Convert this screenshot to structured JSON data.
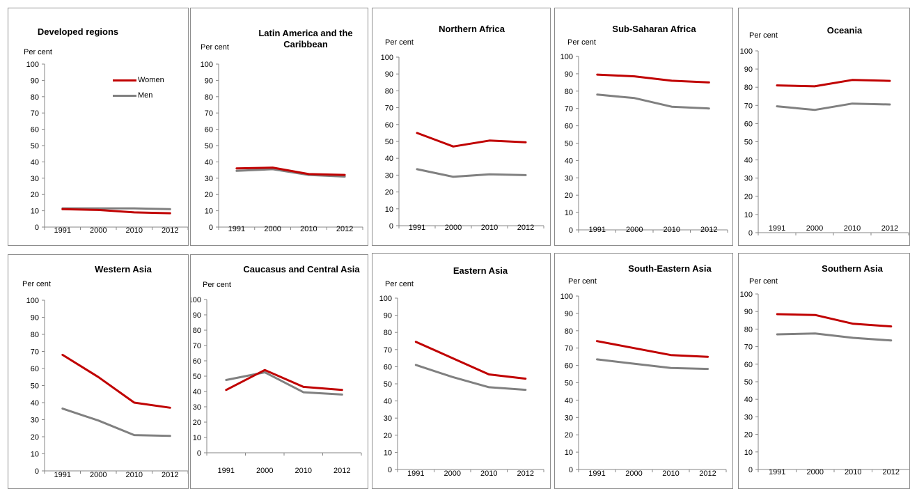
{
  "ylabel": "Per cent",
  "legend": {
    "women": "Women",
    "men": "Men"
  },
  "colors": {
    "women": "#c00000",
    "men": "#808080"
  },
  "chart_data": [
    {
      "type": "line",
      "title": "Developed regions",
      "x": [
        "1991",
        "2000",
        "2010",
        "2012"
      ],
      "ylabel": "Per cent",
      "ylim": [
        0,
        100
      ],
      "yticks": [
        0,
        10,
        20,
        30,
        40,
        50,
        60,
        70,
        80,
        90,
        100
      ],
      "series": [
        {
          "name": "Women",
          "values": [
            11,
            10.5,
            9,
            8.5
          ]
        },
        {
          "name": "Men",
          "values": [
            11.5,
            11.5,
            11.5,
            11
          ]
        }
      ]
    },
    {
      "type": "line",
      "title": "Latin America and the Caribbean",
      "x": [
        "1991",
        "2000",
        "2010",
        "2012"
      ],
      "ylabel": "Per cent",
      "ylim": [
        0,
        100
      ],
      "yticks": [
        0,
        10,
        20,
        30,
        40,
        50,
        60,
        70,
        80,
        90,
        100
      ],
      "series": [
        {
          "name": "Women",
          "values": [
            36,
            36.5,
            32.5,
            32
          ]
        },
        {
          "name": "Men",
          "values": [
            34.5,
            35.5,
            32,
            31
          ]
        }
      ]
    },
    {
      "type": "line",
      "title": "Northern Africa",
      "x": [
        "1991",
        "2000",
        "2010",
        "2012"
      ],
      "ylabel": "Per cent",
      "ylim": [
        0,
        100
      ],
      "yticks": [
        0,
        10,
        20,
        30,
        40,
        50,
        60,
        70,
        80,
        90,
        100
      ],
      "series": [
        {
          "name": "Women",
          "values": [
            55,
            47,
            50.5,
            49.5
          ]
        },
        {
          "name": "Men",
          "values": [
            33.5,
            29,
            30.5,
            30
          ]
        }
      ]
    },
    {
      "type": "line",
      "title": "Sub-Saharan  Africa",
      "x": [
        "1991",
        "2000",
        "2010",
        "2012"
      ],
      "ylabel": "Per cent",
      "ylim": [
        0,
        100
      ],
      "yticks": [
        0,
        10,
        20,
        30,
        40,
        50,
        60,
        70,
        80,
        90,
        100
      ],
      "series": [
        {
          "name": "Women",
          "values": [
            89.5,
            88.5,
            86,
            85
          ]
        },
        {
          "name": "Men",
          "values": [
            78,
            76,
            71,
            70
          ]
        }
      ]
    },
    {
      "type": "line",
      "title": "Oceania",
      "x": [
        "1991",
        "2000",
        "2010",
        "2012"
      ],
      "ylabel": "Per cent",
      "ylim": [
        0,
        100
      ],
      "yticks": [
        0,
        10,
        20,
        30,
        40,
        50,
        60,
        70,
        80,
        90,
        100
      ],
      "series": [
        {
          "name": "Women",
          "values": [
            81,
            80.5,
            84,
            83.5
          ]
        },
        {
          "name": "Men",
          "values": [
            69.5,
            67.5,
            71,
            70.5
          ]
        }
      ]
    },
    {
      "type": "line",
      "title": "Western Asia",
      "x": [
        "1991",
        "2000",
        "2010",
        "2012"
      ],
      "ylabel": "Per cent",
      "ylim": [
        0,
        100
      ],
      "yticks": [
        0,
        10,
        20,
        30,
        40,
        50,
        60,
        70,
        80,
        90,
        100
      ],
      "series": [
        {
          "name": "Women",
          "values": [
            68,
            55,
            40,
            37
          ]
        },
        {
          "name": "Men",
          "values": [
            36.5,
            29.5,
            21,
            20.5
          ]
        }
      ]
    },
    {
      "type": "line",
      "title": "Caucasus and Central Asia",
      "x": [
        "1991",
        "2000",
        "2010",
        "2012"
      ],
      "ylabel": "Per cent",
      "ylim": [
        0,
        100
      ],
      "yticks": [
        0,
        10,
        20,
        30,
        40,
        50,
        60,
        70,
        80,
        90,
        100
      ],
      "series": [
        {
          "name": "Women",
          "values": [
            41,
            54,
            43,
            41
          ]
        },
        {
          "name": "Men",
          "values": [
            47.5,
            52.5,
            39.5,
            38
          ]
        }
      ]
    },
    {
      "type": "line",
      "title": "Eastern Asia",
      "x": [
        "1991",
        "2000",
        "2010",
        "2012"
      ],
      "ylabel": "Per cent",
      "ylim": [
        0,
        100
      ],
      "yticks": [
        0,
        10,
        20,
        30,
        40,
        50,
        60,
        70,
        80,
        90,
        100
      ],
      "series": [
        {
          "name": "Women",
          "values": [
            74.5,
            65,
            55.5,
            53
          ]
        },
        {
          "name": "Men",
          "values": [
            61,
            54,
            48,
            46.5
          ]
        }
      ]
    },
    {
      "type": "line",
      "title": "South-Eastern Asia",
      "x": [
        "1991",
        "2000",
        "2010",
        "2012"
      ],
      "ylabel": "Per cent",
      "ylim": [
        0,
        100
      ],
      "yticks": [
        0,
        10,
        20,
        30,
        40,
        50,
        60,
        70,
        80,
        90,
        100
      ],
      "series": [
        {
          "name": "Women",
          "values": [
            74,
            70,
            66,
            65
          ]
        },
        {
          "name": "Men",
          "values": [
            63.5,
            61,
            58.5,
            58
          ]
        }
      ]
    },
    {
      "type": "line",
      "title": "Southern Asia",
      "x": [
        "1991",
        "2000",
        "2010",
        "2012"
      ],
      "ylabel": "Per cent",
      "ylim": [
        0,
        100
      ],
      "yticks": [
        0,
        10,
        20,
        30,
        40,
        50,
        60,
        70,
        80,
        90,
        100
      ],
      "series": [
        {
          "name": "Women",
          "values": [
            88.5,
            88,
            83,
            81.5
          ]
        },
        {
          "name": "Men",
          "values": [
            77,
            77.5,
            75,
            73.5
          ]
        }
      ]
    }
  ]
}
